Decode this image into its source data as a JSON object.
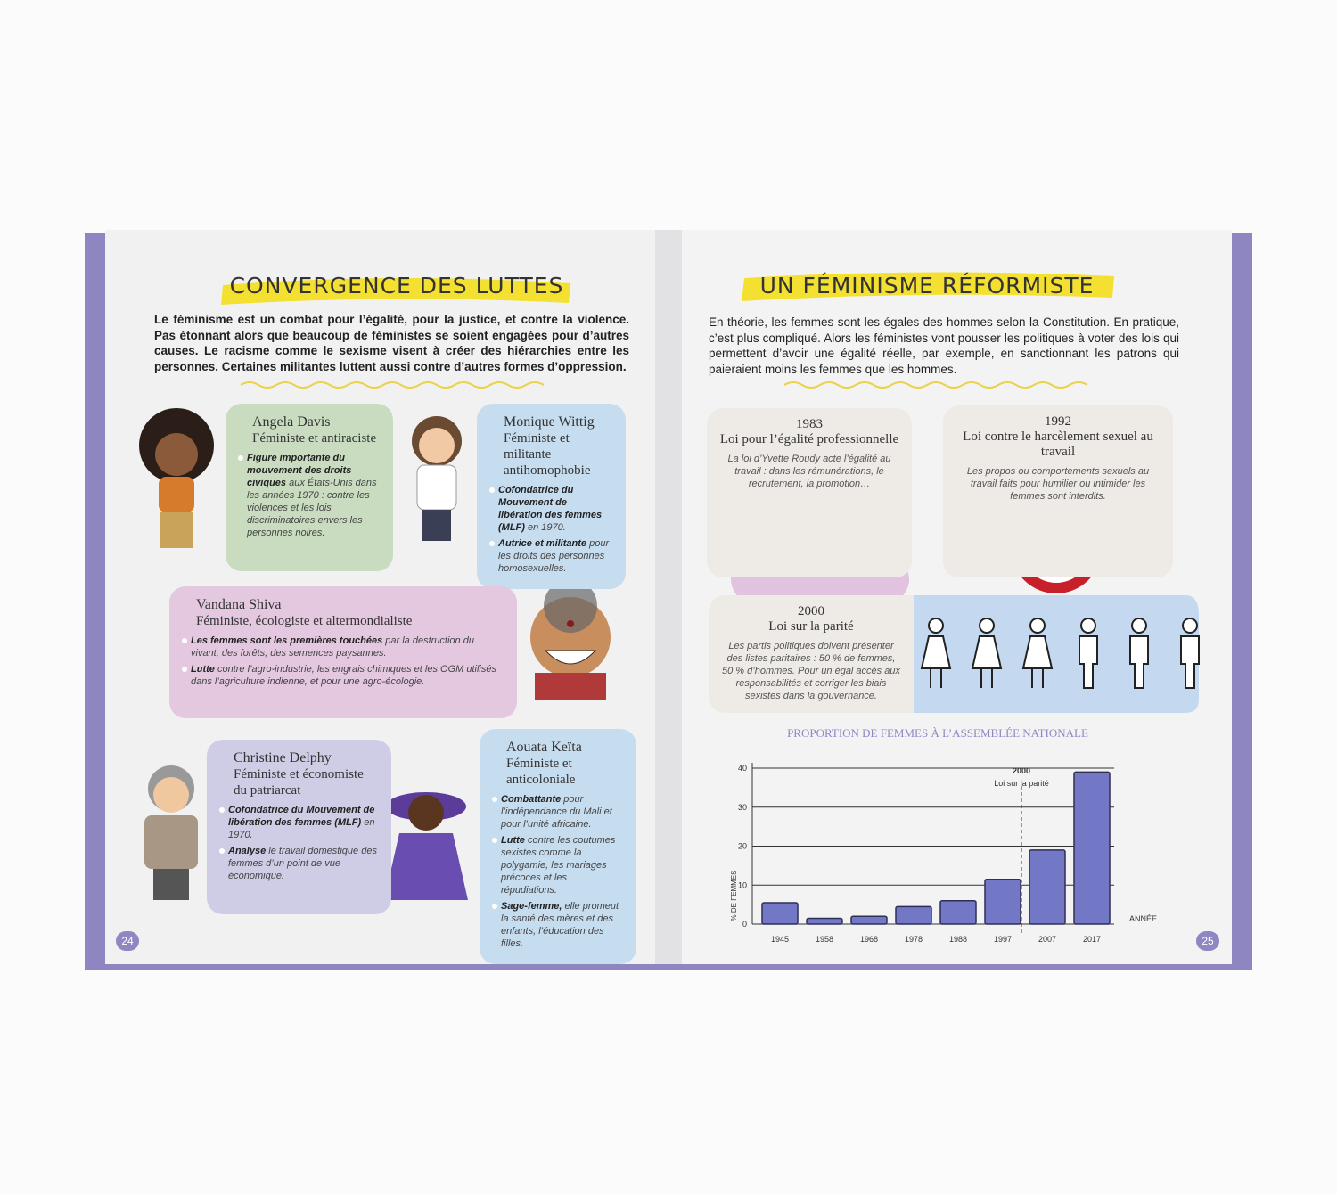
{
  "left_page": {
    "title": "CONVERGENCE DES LUTTES",
    "intro": "Le féminisme est un combat pour l’égalité, pour la justice, et contre la violence. Pas étonnant alors que beaucoup de féministes se soient engagées pour d’autres causes. Le racisme comme le sexisme visent à créer des hiérarchies entre les personnes. Certaines militantes luttent aussi contre d’autres formes d’oppression.",
    "profiles": [
      {
        "name": "Angela Davis",
        "subtitle": "Féministe et antiraciste",
        "bullets": [
          {
            "lead": "Figure importante du mouvement des droits civiques",
            "text": "aux États-Unis dans les années 1970 : contre les violences et les lois discriminatoires envers les personnes noires."
          }
        ]
      },
      {
        "name": "Monique Wittig",
        "subtitle": "Féministe et militante antihomophobie",
        "bullets": [
          {
            "lead": "Cofondatrice du Mouvement de libération des femmes (MLF)",
            "text": "en 1970."
          },
          {
            "lead": "Autrice et militante",
            "text": "pour les droits des personnes homosexuelles."
          }
        ]
      },
      {
        "name": "Vandana Shiva",
        "subtitle": "Féministe, écologiste et altermondialiste",
        "bullets": [
          {
            "lead": "Les femmes sont les premières touchées",
            "text": "par la destruction du vivant, des forêts, des semences paysannes."
          },
          {
            "lead": "Lutte",
            "text": "contre l’agro-industrie, les engrais chimiques et les OGM utilisés dans l’agriculture indienne, et pour une agro-écologie."
          }
        ]
      },
      {
        "name": "Christine Delphy",
        "subtitle": "Féministe et économiste du patriarcat",
        "bullets": [
          {
            "lead": "Cofondatrice du Mouvement de libération des femmes (MLF)",
            "text": "en 1970."
          },
          {
            "lead": "Analyse",
            "text": "le travail domestique des femmes d’un point de vue économique."
          }
        ]
      },
      {
        "name": "Aouata Keïta",
        "subtitle": "Féministe et anticoloniale",
        "bullets": [
          {
            "lead": "Combattante",
            "text": "pour l’indépendance du Mali et pour l’unité africaine."
          },
          {
            "lead": "Lutte",
            "text": "contre les coutumes sexistes comme la polygamie, les mariages précoces et les répudiations."
          },
          {
            "lead": "Sage-femme,",
            "text": "elle promeut la santé des mères et des enfants, l’éducation des filles."
          }
        ]
      }
    ],
    "page_number": "24"
  },
  "right_page": {
    "title": "UN FÉMINISME RÉFORMISTE",
    "intro": "En théorie, les femmes sont les égales des hommes selon la Constitution. En pratique, c’est plus compliqué. Alors les féministes vont pousser les politiques à voter des lois qui permettent d’avoir une égalité réelle, par exemple, en sanctionnant les patrons qui paieraient moins les femmes que les hommes.",
    "laws": [
      {
        "year": "1983",
        "title": "Loi pour l’égalité professionnelle",
        "text": "La loi d’Yvette Roudy acte l’égalité au travail : dans les rémunérations, le recrutement, la promotion…"
      },
      {
        "year": "1992",
        "title": "Loi contre le harcèlement sexuel au travail",
        "text": "Les propos ou comportements sexuels au travail faits pour humilier ou intimider les femmes sont interdits."
      },
      {
        "year": "2000",
        "title": "Loi sur la parité",
        "text": "Les partis politiques doivent présenter des listes paritaires : 50 % de femmes, 50 % d’hommes. Pour un égal accès aux responsabilités et corriger les biais sexistes dans la gouvernance."
      }
    ],
    "page_number": "25"
  },
  "chart_data": {
    "type": "bar",
    "title": "PROPORTION DE FEMMES À L’ASSEMBLÉE NATIONALE",
    "y_label": "% DE FEMMES",
    "x_label": "ANNÉE",
    "categories": [
      "1945",
      "1958",
      "1968",
      "1978",
      "1988",
      "1997",
      "2007",
      "2017"
    ],
    "values": [
      5.5,
      1.5,
      2,
      4.5,
      6,
      11.5,
      19,
      39
    ],
    "color": "#7278c6",
    "ylim": [
      0,
      40
    ],
    "yticks": [
      0,
      10,
      20,
      30,
      40
    ],
    "grid": true,
    "annotation": {
      "year": "2000",
      "text": "Loi sur la parité"
    }
  }
}
